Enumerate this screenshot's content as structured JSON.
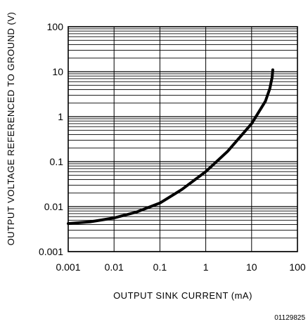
{
  "chart_data": {
    "type": "line",
    "xlabel": "OUTPUT SINK CURRENT (mA)",
    "ylabel": "OUTPUT VOLTAGE REFERENCED TO GROUND (V)",
    "x_scale": "log",
    "y_scale": "log",
    "xlim": [
      0.001,
      100
    ],
    "ylim": [
      0.001,
      100
    ],
    "x_ticks": [
      "0.001",
      "0.01",
      "0.1",
      "1",
      "10",
      "100"
    ],
    "y_ticks": [
      "0.001",
      "0.01",
      "0.1",
      "1",
      "10",
      "100"
    ],
    "grid": true,
    "figure_id": "01129825",
    "series": [
      {
        "x": [
          0.001,
          0.003,
          0.01,
          0.03,
          0.1,
          0.3,
          1,
          3,
          10,
          20,
          25,
          28,
          29
        ],
        "y": [
          0.0042,
          0.0046,
          0.0056,
          0.0075,
          0.012,
          0.024,
          0.06,
          0.17,
          0.7,
          2.2,
          4.2,
          7.5,
          11
        ]
      }
    ]
  }
}
